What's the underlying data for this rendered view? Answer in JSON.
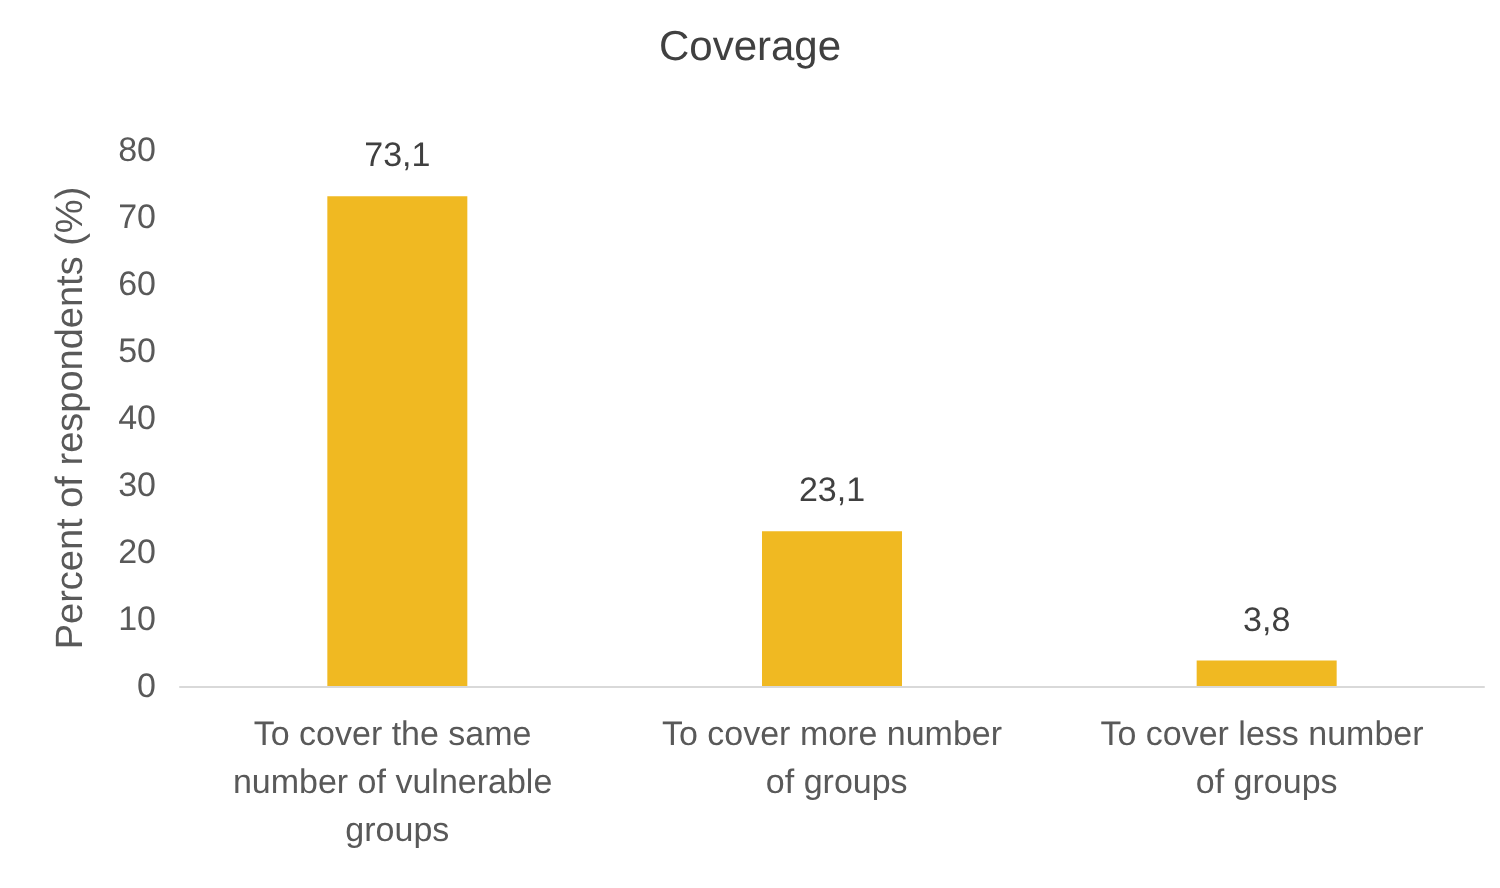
{
  "chart_data": {
    "type": "bar",
    "title": "Coverage",
    "ylabel": "Percent of respondents (%)",
    "categories": [
      "To cover the same number of vulnerable groups",
      "To cover more number of groups",
      "To cover less number of groups"
    ],
    "values": [
      73.1,
      23.1,
      3.8
    ],
    "value_labels": [
      "73,1",
      "23,1",
      "3,8"
    ],
    "color": "#f0b922",
    "ylim": [
      0,
      80
    ],
    "yticks": [
      0,
      10,
      20,
      30,
      40,
      50,
      60,
      70,
      80
    ]
  }
}
